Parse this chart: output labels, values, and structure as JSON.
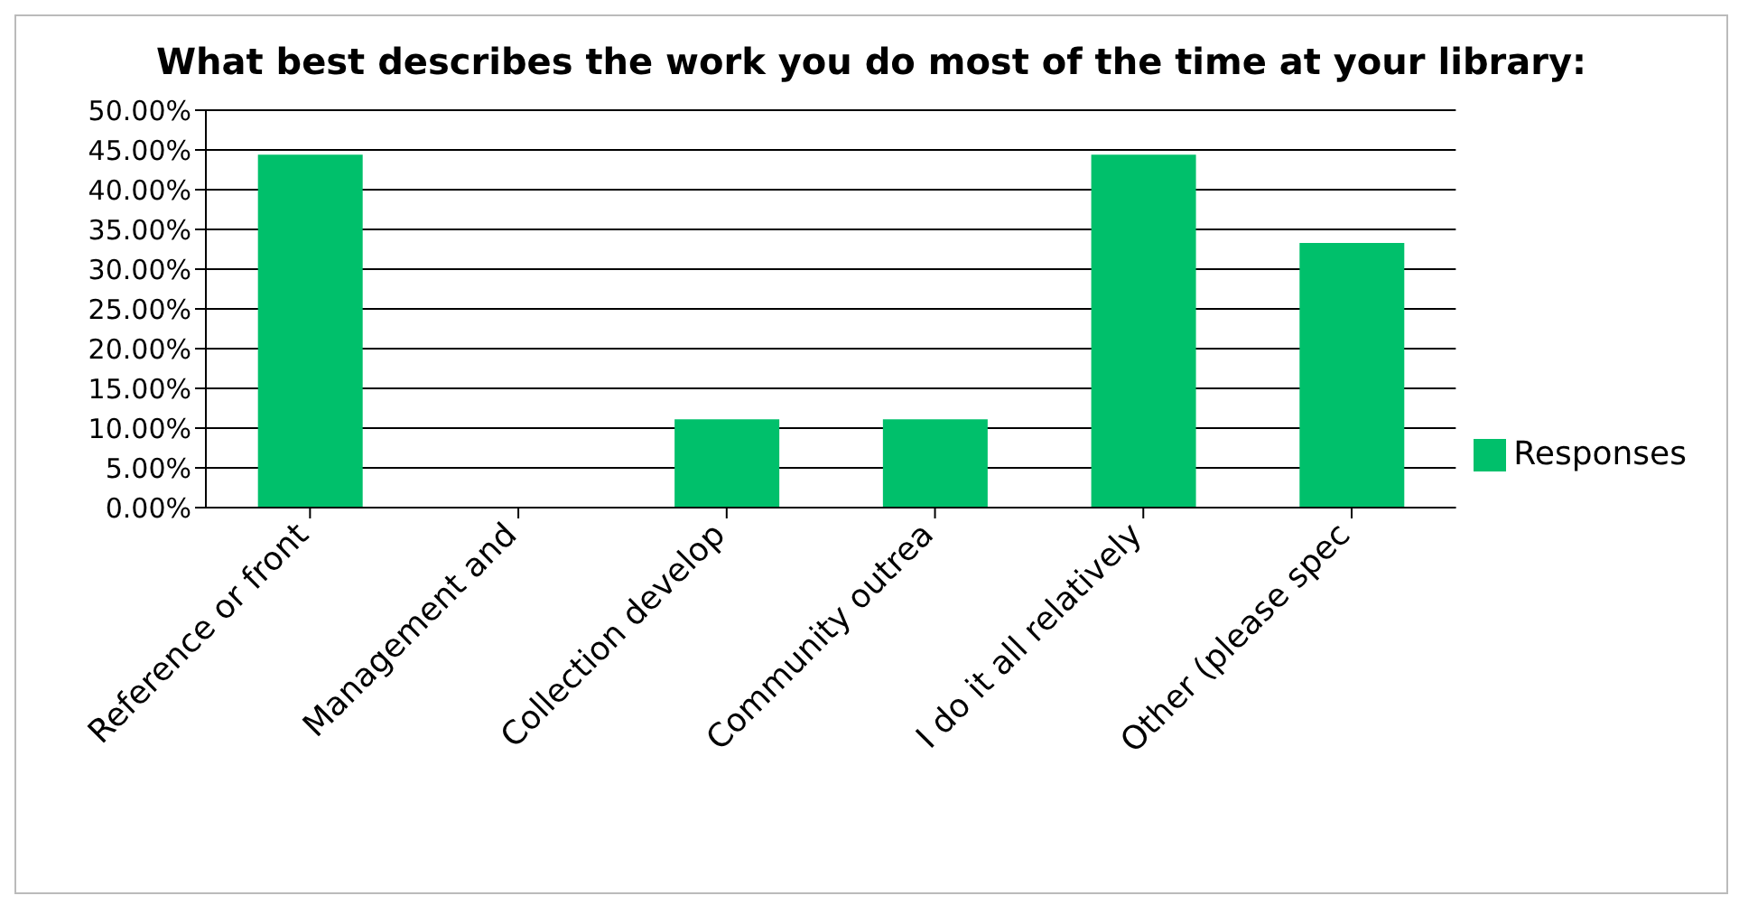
{
  "chart_data": {
    "type": "bar",
    "title": "What best describes the work you do most of the time at your library:",
    "categories": [
      "Reference or front",
      "Management and",
      "Collection develop",
      "Community outrea",
      "I do it all relatively",
      "Other (please spec"
    ],
    "series": [
      {
        "name": "Responses",
        "color": "#00c06b",
        "values": [
          44.4,
          0,
          11.1,
          11.1,
          44.4,
          33.3
        ]
      }
    ],
    "ylim": [
      0,
      50
    ],
    "yticks": [
      {
        "value": 0,
        "label": "0.00%"
      },
      {
        "value": 5,
        "label": "5.00%"
      },
      {
        "value": 10,
        "label": "10.00%"
      },
      {
        "value": 15,
        "label": "15.00%"
      },
      {
        "value": 20,
        "label": "20.00%"
      },
      {
        "value": 25,
        "label": "25.00%"
      },
      {
        "value": 30,
        "label": "30.00%"
      },
      {
        "value": 35,
        "label": "35.00%"
      },
      {
        "value": 40,
        "label": "40.00%"
      },
      {
        "value": 45,
        "label": "45.00%"
      },
      {
        "value": 50,
        "label": "50.00%"
      }
    ],
    "grid": "y",
    "legend": "right"
  }
}
